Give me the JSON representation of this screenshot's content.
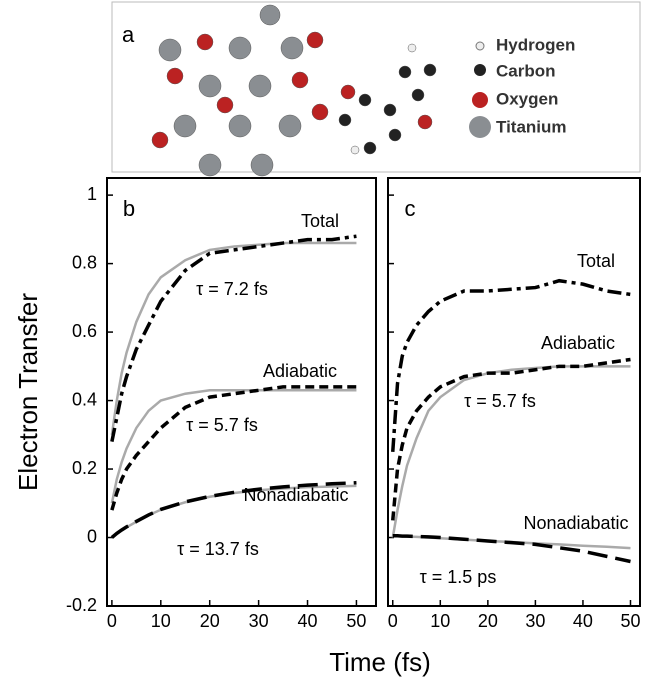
{
  "structure": {
    "panel_label": "a",
    "legend": [
      "Hydrogen",
      "Carbon",
      "Oxygen",
      "Titanium"
    ]
  },
  "xlabel": "Time (fs)",
  "ylabel": "Electron Transfer",
  "chart_data": [
    {
      "type": "line",
      "panel_label": "b",
      "x": [
        0,
        1,
        2,
        3,
        5,
        7.5,
        10,
        15,
        20,
        25,
        30,
        35,
        40,
        45,
        50
      ],
      "xlim": [
        -1,
        54
      ],
      "xticks": [
        0,
        10,
        20,
        30,
        40,
        50
      ],
      "ylim": [
        -0.2,
        1.05
      ],
      "yticks": [
        -0.2,
        0,
        0.2,
        0.4,
        0.6,
        0.8,
        1
      ],
      "show_ytick_labels": true,
      "series": [
        {
          "color": "#aaaaaa",
          "dash": "solid",
          "values": [
            0.3,
            0.4,
            0.48,
            0.54,
            0.63,
            0.71,
            0.76,
            0.81,
            0.84,
            0.85,
            0.855,
            0.86,
            0.86,
            0.86,
            0.86
          ]
        },
        {
          "color": "#000000",
          "dash": "dashdot",
          "values": [
            0.28,
            0.35,
            0.42,
            0.47,
            0.55,
            0.62,
            0.69,
            0.78,
            0.83,
            0.84,
            0.85,
            0.86,
            0.87,
            0.87,
            0.88
          ]
        },
        {
          "color": "#aaaaaa",
          "dash": "solid",
          "values": [
            0.1,
            0.17,
            0.22,
            0.26,
            0.32,
            0.37,
            0.4,
            0.42,
            0.43,
            0.43,
            0.43,
            0.43,
            0.43,
            0.43,
            0.43
          ]
        },
        {
          "color": "#000000",
          "dash": "dashed",
          "values": [
            0.08,
            0.13,
            0.17,
            0.2,
            0.24,
            0.28,
            0.32,
            0.38,
            0.41,
            0.42,
            0.43,
            0.44,
            0.44,
            0.44,
            0.44
          ]
        },
        {
          "color": "#aaaaaa",
          "dash": "solid",
          "values": [
            0,
            0.011,
            0.021,
            0.03,
            0.046,
            0.065,
            0.081,
            0.103,
            0.119,
            0.13,
            0.138,
            0.143,
            0.147,
            0.149,
            0.151
          ]
        },
        {
          "color": "#000000",
          "dash": "longdash",
          "values": [
            0,
            0.012,
            0.022,
            0.031,
            0.047,
            0.066,
            0.082,
            0.104,
            0.12,
            0.132,
            0.141,
            0.148,
            0.153,
            0.157,
            0.16
          ]
        }
      ],
      "annotations": [
        "Total",
        "τ = 7.2 fs",
        "Adiabatic",
        "τ = 5.7 fs",
        "Nonadiabatic",
        "τ = 13.7 fs"
      ]
    },
    {
      "type": "line",
      "panel_label": "c",
      "x": [
        0,
        1,
        2,
        3,
        5,
        7.5,
        10,
        15,
        20,
        25,
        30,
        35,
        40,
        45,
        50
      ],
      "xlim": [
        -1,
        52
      ],
      "xticks": [
        0,
        10,
        20,
        30,
        40,
        50
      ],
      "ylim": [
        -0.2,
        1.05
      ],
      "yticks": [
        -0.2,
        0,
        0.2,
        0.4,
        0.6,
        0.8,
        1
      ],
      "show_ytick_labels": false,
      "series": [
        {
          "color": "#000000",
          "dash": "dashdot",
          "values": [
            0.25,
            0.45,
            0.53,
            0.57,
            0.62,
            0.66,
            0.69,
            0.72,
            0.72,
            0.725,
            0.73,
            0.75,
            0.74,
            0.72,
            0.71
          ]
        },
        {
          "color": "#aaaaaa",
          "dash": "solid",
          "values": [
            0,
            0.08,
            0.15,
            0.21,
            0.29,
            0.37,
            0.41,
            0.46,
            0.48,
            0.49,
            0.495,
            0.5,
            0.5,
            0.5,
            0.5
          ]
        },
        {
          "color": "#000000",
          "dash": "dashed",
          "values": [
            0.05,
            0.2,
            0.27,
            0.32,
            0.37,
            0.41,
            0.44,
            0.47,
            0.48,
            0.48,
            0.49,
            0.5,
            0.5,
            0.51,
            0.52
          ]
        },
        {
          "color": "#aaaaaa",
          "dash": "solid",
          "values": [
            0.005,
            0.004,
            0.004,
            0.003,
            0.002,
            0.0,
            -0.002,
            -0.006,
            -0.01,
            -0.013,
            -0.017,
            -0.02,
            -0.024,
            -0.027,
            -0.031
          ]
        },
        {
          "color": "#000000",
          "dash": "longdash",
          "values": [
            0.005,
            0.005,
            0.004,
            0.004,
            0.003,
            0.002,
            0.0,
            -0.005,
            -0.01,
            -0.015,
            -0.02,
            -0.03,
            -0.04,
            -0.055,
            -0.07
          ]
        }
      ],
      "annotations": [
        "Total",
        "Adiabatic",
        "τ = 5.7 fs",
        "Nonadiabatic",
        "τ = 1.5 ps"
      ]
    }
  ]
}
